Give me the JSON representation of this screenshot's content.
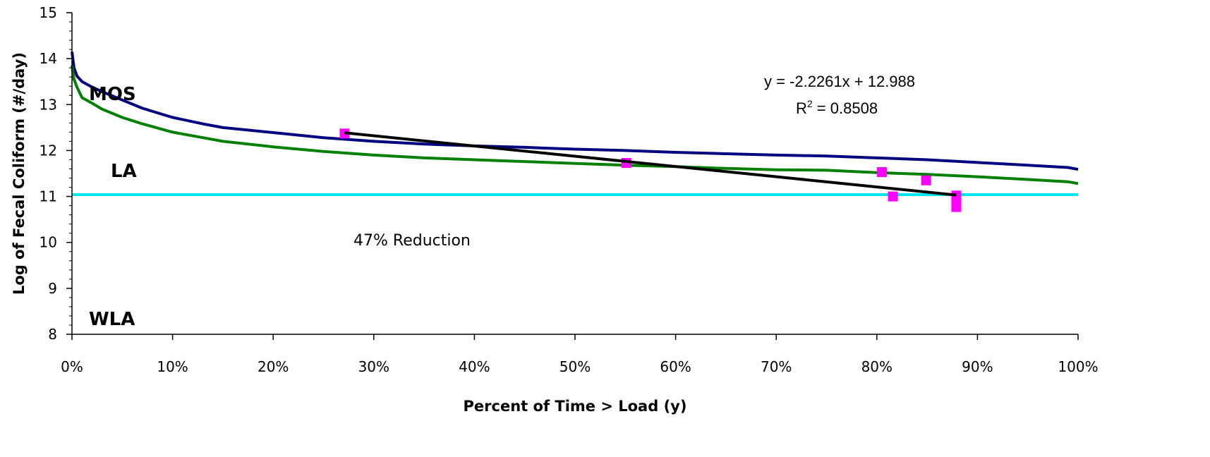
{
  "chart_data": {
    "type": "line",
    "xlabel": "Percent of Time > Load (y)",
    "ylabel": "Log of Fecal Coliform (#/day)",
    "xlim": [
      0,
      1
    ],
    "ylim": [
      8,
      15
    ],
    "x_ticks": [
      0,
      0.1,
      0.2,
      0.3,
      0.4,
      0.5,
      0.6,
      0.7,
      0.8,
      0.9,
      1.0
    ],
    "x_tick_labels": [
      "0%",
      "10%",
      "20%",
      "30%",
      "40%",
      "50%",
      "60%",
      "70%",
      "80%",
      "90%",
      "100%"
    ],
    "y_ticks": [
      8,
      9,
      10,
      11,
      12,
      13,
      14,
      15
    ],
    "y_tick_labels": [
      "8",
      "9",
      "10",
      "11",
      "12",
      "13",
      "14",
      "15"
    ],
    "grid": false,
    "series": [
      {
        "kind": "line",
        "color": "#000080",
        "x": [
          0,
          0.002,
          0.005,
          0.01,
          0.02,
          0.03,
          0.05,
          0.07,
          0.1,
          0.13,
          0.15,
          0.2,
          0.25,
          0.3,
          0.35,
          0.4,
          0.45,
          0.5,
          0.55,
          0.6,
          0.65,
          0.7,
          0.75,
          0.8,
          0.85,
          0.9,
          0.95,
          0.99,
          1.0
        ],
        "y": [
          14.15,
          13.8,
          13.62,
          13.5,
          13.38,
          13.28,
          13.1,
          12.92,
          12.72,
          12.58,
          12.5,
          12.39,
          12.28,
          12.2,
          12.14,
          12.1,
          12.07,
          12.03,
          12.0,
          11.96,
          11.93,
          11.9,
          11.88,
          11.84,
          11.8,
          11.74,
          11.68,
          11.63,
          11.59
        ]
      },
      {
        "kind": "line",
        "color": "#008000",
        "x": [
          0,
          0.002,
          0.005,
          0.01,
          0.02,
          0.03,
          0.05,
          0.07,
          0.1,
          0.13,
          0.15,
          0.2,
          0.25,
          0.3,
          0.35,
          0.4,
          0.45,
          0.5,
          0.55,
          0.6,
          0.65,
          0.7,
          0.75,
          0.8,
          0.85,
          0.9,
          0.95,
          0.99,
          1.0
        ],
        "y": [
          13.85,
          13.55,
          13.38,
          13.15,
          13.03,
          12.9,
          12.72,
          12.58,
          12.4,
          12.28,
          12.2,
          12.08,
          11.98,
          11.9,
          11.84,
          11.8,
          11.76,
          11.72,
          11.68,
          11.65,
          11.61,
          11.58,
          11.57,
          11.52,
          11.48,
          11.43,
          11.37,
          11.32,
          11.28
        ]
      },
      {
        "kind": "hline",
        "color": "#00E5EE",
        "y": 11.04
      },
      {
        "kind": "scatter",
        "color": "#FF00FF",
        "x": [
          0.271,
          0.551,
          0.805,
          0.816,
          0.849,
          0.879,
          0.879,
          0.879
        ],
        "y": [
          12.37,
          11.73,
          11.53,
          11.0,
          11.35,
          11.02,
          10.88,
          10.77
        ]
      },
      {
        "kind": "line",
        "color": "#000000",
        "x": [
          0.271,
          0.879
        ],
        "y": [
          12.385,
          11.03
        ]
      }
    ],
    "region_labels": [
      "MOS",
      "LA",
      "WLA"
    ],
    "annotations": {
      "reduction": "47% Reduction",
      "equation": "y = -2.2261x + 12.988",
      "r2_base": "R",
      "r2_sup": "2",
      "r2_rest": " = 0.8508"
    }
  }
}
